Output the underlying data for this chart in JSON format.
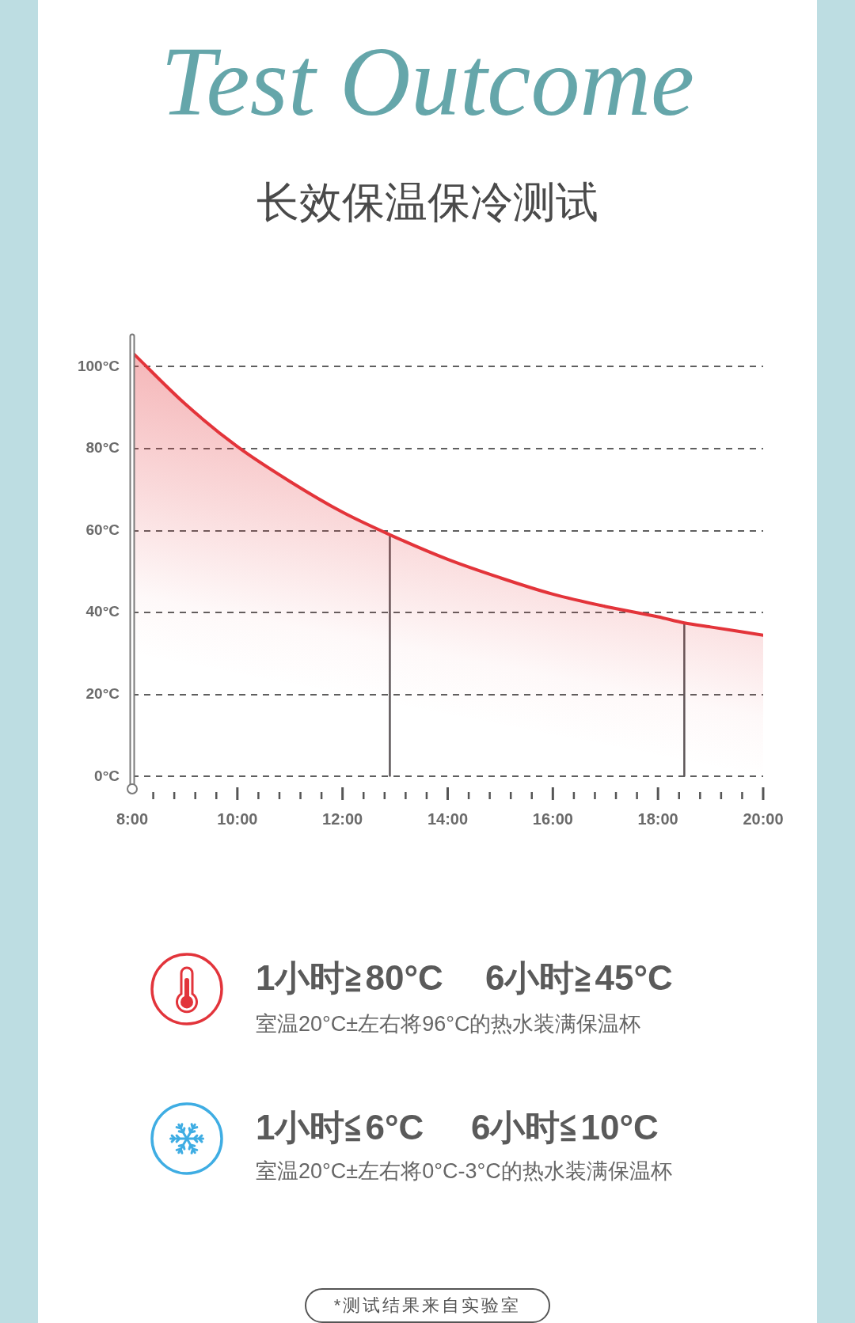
{
  "chart_data": {
    "type": "area",
    "title": "Test Outcome",
    "subtitle": "长效保温保冷测试",
    "x": [
      8,
      9,
      10,
      11,
      12,
      12.9,
      14,
      15,
      16,
      17,
      18,
      18.5,
      19,
      20
    ],
    "series": [
      {
        "color": "#e3343a",
        "values": [
          103.5,
          91,
          80.5,
          72,
          64.5,
          59,
          53,
          48.5,
          44.5,
          41.5,
          39,
          37.5,
          36.5,
          34.5
        ]
      }
    ],
    "xlim": [
      8,
      20
    ],
    "xticks": [
      {
        "value": 8,
        "label": "8:00"
      },
      {
        "value": 8.4,
        "label": null
      },
      {
        "value": 8.8,
        "label": null
      },
      {
        "value": 9.2,
        "label": null
      },
      {
        "value": 9.6,
        "label": null
      },
      {
        "value": 10,
        "label": "10:00"
      },
      {
        "value": 10.4,
        "label": null
      },
      {
        "value": 10.8,
        "label": null
      },
      {
        "value": 11.2,
        "label": null
      },
      {
        "value": 11.6,
        "label": null
      },
      {
        "value": 12,
        "label": "12:00"
      },
      {
        "value": 12.4,
        "label": null
      },
      {
        "value": 12.8,
        "label": null
      },
      {
        "value": 13.2,
        "label": null
      },
      {
        "value": 13.6,
        "label": null
      },
      {
        "value": 14,
        "label": "14:00"
      },
      {
        "value": 14.4,
        "label": null
      },
      {
        "value": 14.8,
        "label": null
      },
      {
        "value": 15.2,
        "label": null
      },
      {
        "value": 15.6,
        "label": null
      },
      {
        "value": 16,
        "label": "16:00"
      },
      {
        "value": 16.4,
        "label": null
      },
      {
        "value": 16.8,
        "label": null
      },
      {
        "value": 17.2,
        "label": null
      },
      {
        "value": 17.6,
        "label": null
      },
      {
        "value": 18,
        "label": "18:00"
      },
      {
        "value": 18.4,
        "label": null
      },
      {
        "value": 18.8,
        "label": null
      },
      {
        "value": 19.2,
        "label": null
      },
      {
        "value": 19.6,
        "label": null
      },
      {
        "value": 20,
        "label": "20:00"
      }
    ],
    "ylim": [
      -3,
      108
    ],
    "yticks": [
      {
        "value": 0,
        "label": "0°C"
      },
      {
        "value": 20,
        "label": "20°C"
      },
      {
        "value": 40,
        "label": "40°C"
      },
      {
        "value": 60,
        "label": "60°C"
      },
      {
        "value": 80,
        "label": "80°C"
      },
      {
        "value": 100,
        "label": "100°C"
      }
    ],
    "grid": "y",
    "marker": "none",
    "ref_lines": [
      {
        "axis": "x",
        "value": 12.9,
        "color": "#5b5557"
      },
      {
        "axis": "x",
        "value": 18.5,
        "color": "#5b5557"
      }
    ],
    "annotations": [
      "1小时≧80°C",
      "6小时≧45°C",
      "室温20°C±左右将96°C的热水装满保温杯",
      "1小时≦6°C",
      "6小时≦10°C",
      "室温20°C±左右将0°C-3°C的热水装满保温杯",
      "*测试结果来自实验室"
    ]
  }
}
